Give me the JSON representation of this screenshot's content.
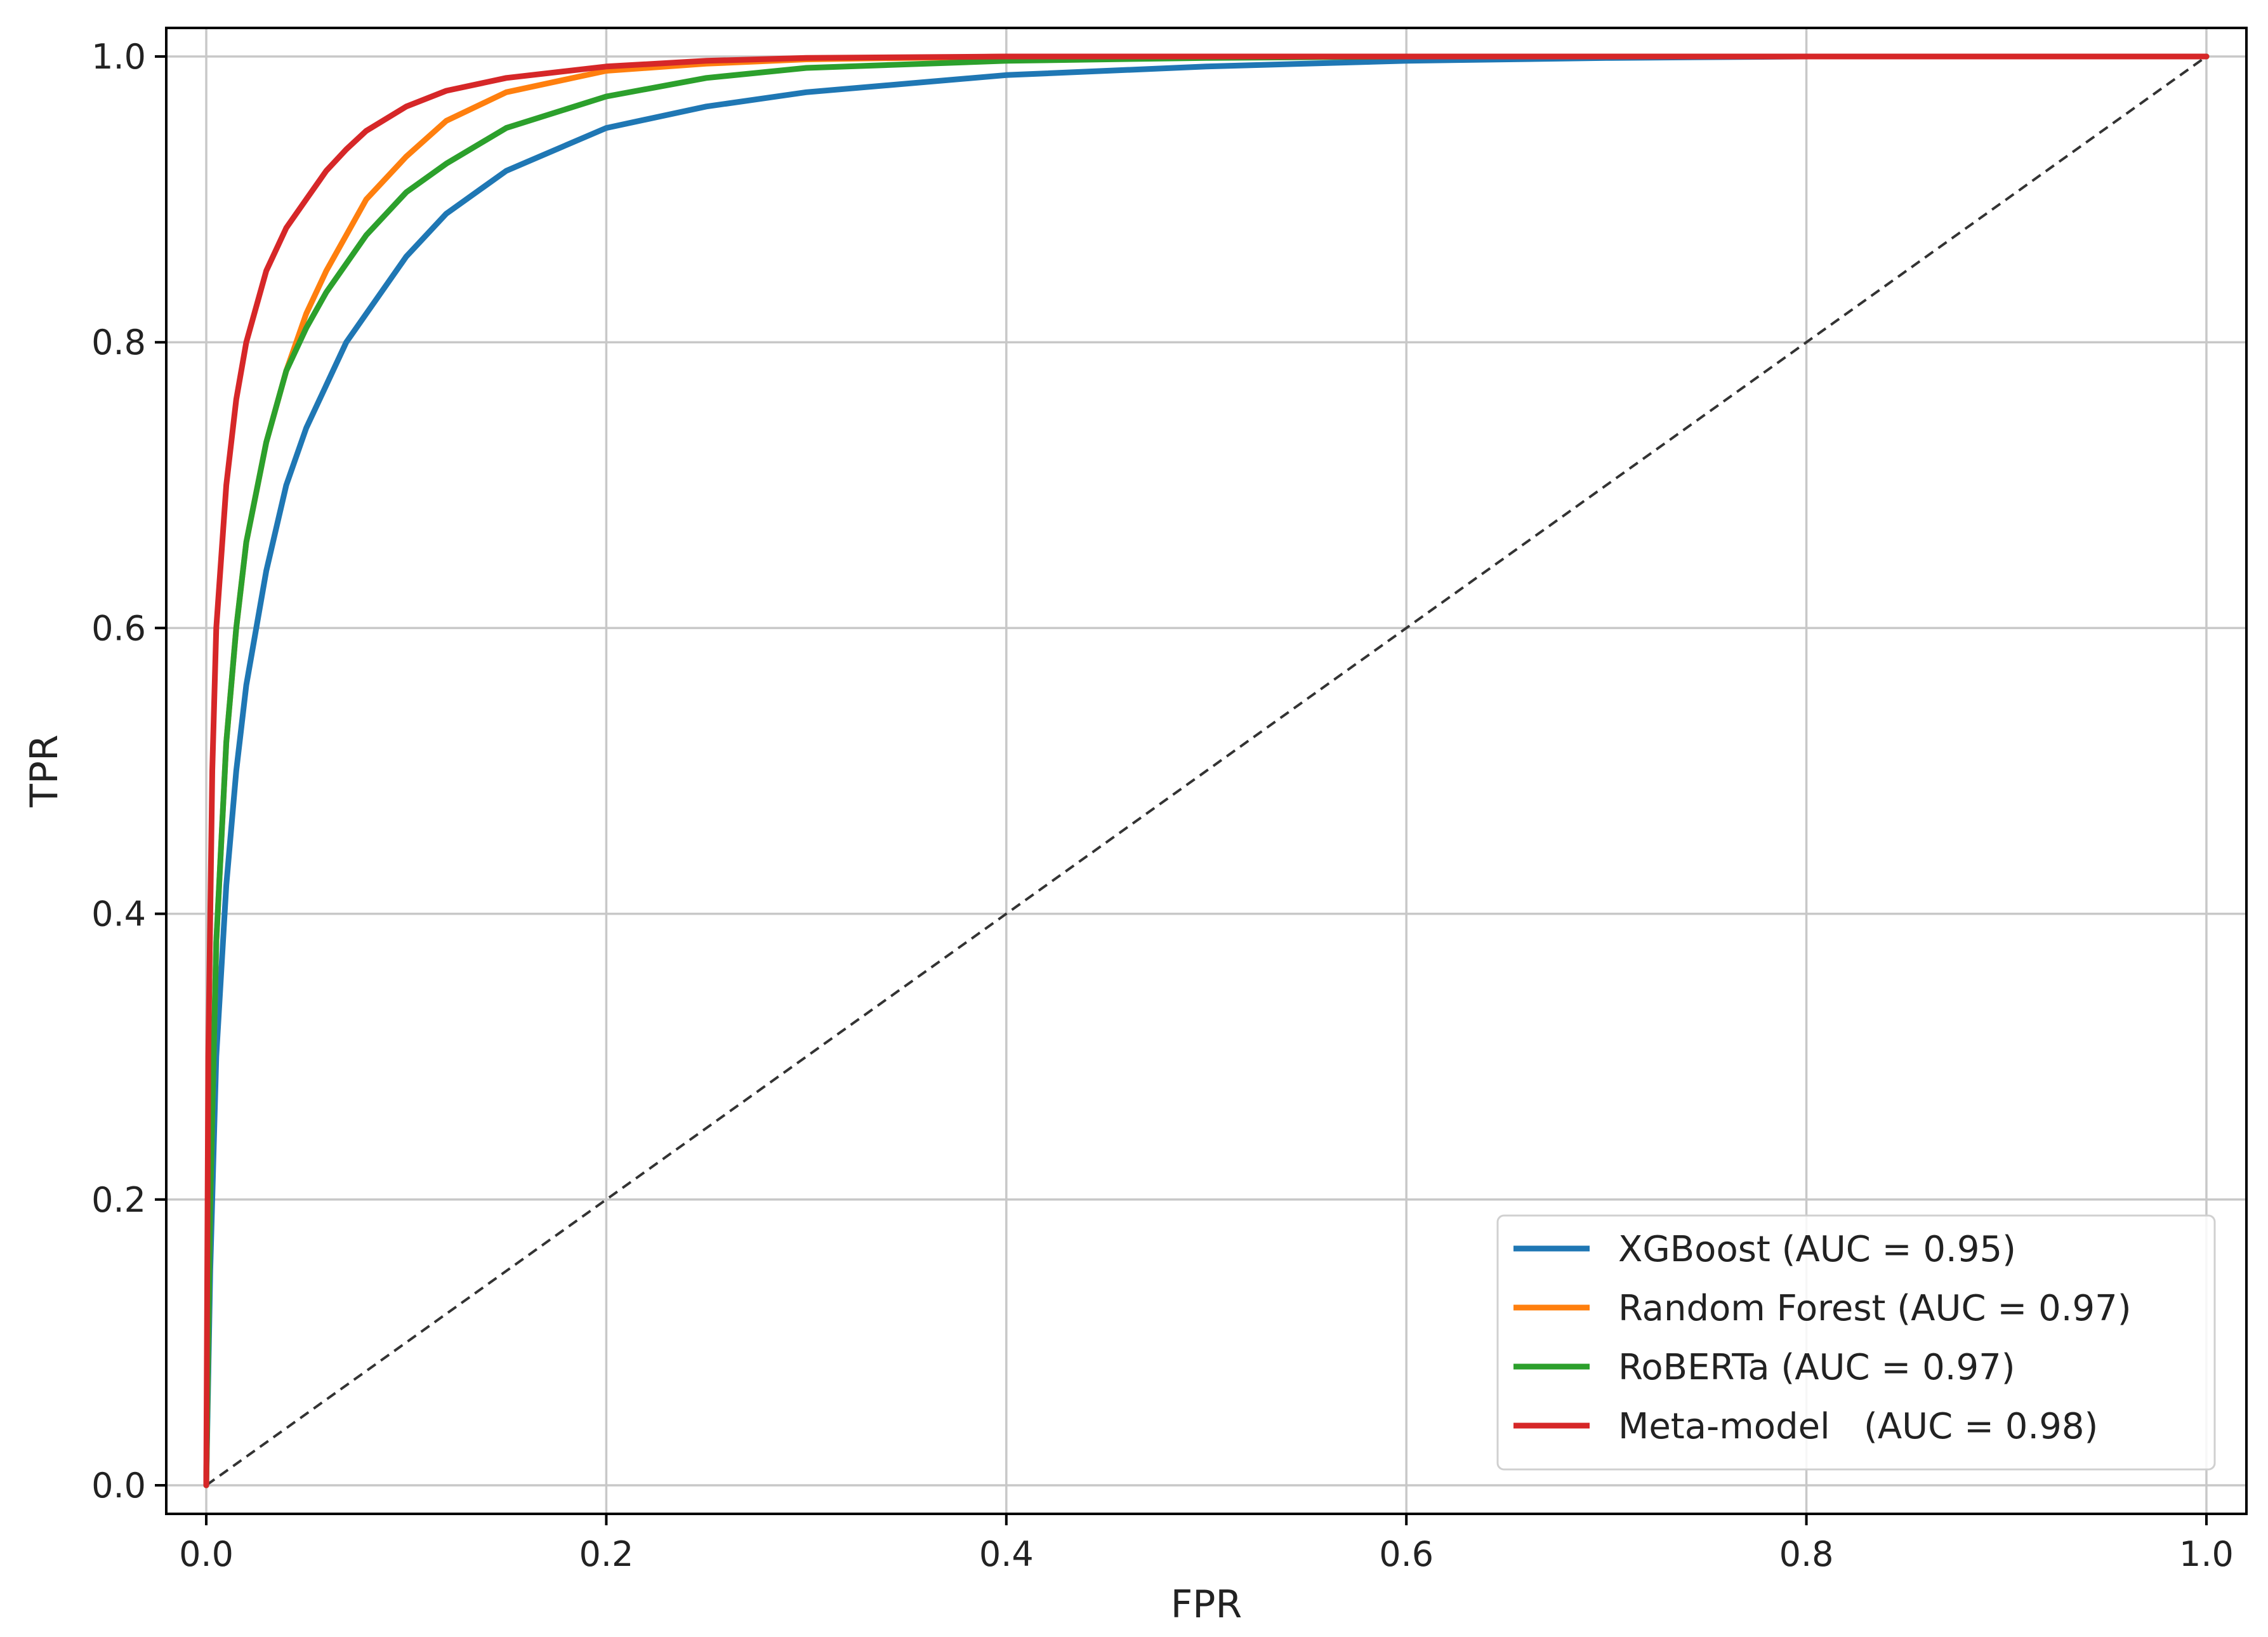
{
  "chart_data": {
    "type": "line",
    "title": "",
    "xlabel": "FPR",
    "ylabel": "TPR",
    "xlim": [
      -0.02,
      1.02
    ],
    "ylim": [
      -0.02,
      1.02
    ],
    "xticks": [
      0.0,
      0.2,
      0.4,
      0.6,
      0.8,
      1.0
    ],
    "yticks": [
      0.0,
      0.2,
      0.4,
      0.6,
      0.8,
      1.0
    ],
    "xtick_labels": [
      "0.0",
      "0.2",
      "0.4",
      "0.6",
      "0.8",
      "1.0"
    ],
    "ytick_labels": [
      "0.0",
      "0.2",
      "0.4",
      "0.6",
      "0.8",
      "1.0"
    ],
    "grid": true,
    "legend_position": "lower-right",
    "series": [
      {
        "name": "XGBoost (AUC = 0.95)",
        "color": "#1f77b4",
        "x": [
          0,
          0.002,
          0.005,
          0.01,
          0.015,
          0.02,
          0.03,
          0.04,
          0.05,
          0.06,
          0.07,
          0.08,
          0.1,
          0.12,
          0.15,
          0.2,
          0.25,
          0.3,
          0.4,
          0.5,
          0.6,
          0.7,
          0.8,
          0.9,
          1.0
        ],
        "y": [
          0,
          0.15,
          0.3,
          0.42,
          0.5,
          0.56,
          0.64,
          0.7,
          0.74,
          0.77,
          0.8,
          0.82,
          0.86,
          0.89,
          0.92,
          0.95,
          0.965,
          0.975,
          0.987,
          0.993,
          0.997,
          0.999,
          1.0,
          1.0,
          1.0
        ]
      },
      {
        "name": "Random Forest (AUC = 0.97)",
        "color": "#ff7f0e",
        "x": [
          0,
          0.002,
          0.005,
          0.01,
          0.015,
          0.02,
          0.03,
          0.04,
          0.05,
          0.06,
          0.07,
          0.08,
          0.1,
          0.12,
          0.15,
          0.2,
          0.25,
          0.3,
          0.4,
          0.5,
          0.6,
          0.8,
          1.0
        ],
        "y": [
          0,
          0.2,
          0.38,
          0.52,
          0.6,
          0.66,
          0.73,
          0.78,
          0.82,
          0.85,
          0.875,
          0.9,
          0.93,
          0.955,
          0.975,
          0.99,
          0.995,
          0.998,
          1.0,
          1.0,
          1.0,
          1.0,
          1.0
        ]
      },
      {
        "name": "RoBERTa (AUC = 0.97)",
        "color": "#2ca02c",
        "x": [
          0,
          0.002,
          0.005,
          0.01,
          0.015,
          0.02,
          0.03,
          0.04,
          0.05,
          0.06,
          0.07,
          0.08,
          0.1,
          0.12,
          0.15,
          0.2,
          0.25,
          0.3,
          0.4,
          0.5,
          0.6,
          0.8,
          1.0
        ],
        "y": [
          0,
          0.2,
          0.38,
          0.52,
          0.6,
          0.66,
          0.73,
          0.78,
          0.81,
          0.835,
          0.855,
          0.875,
          0.905,
          0.925,
          0.95,
          0.972,
          0.985,
          0.992,
          0.997,
          0.999,
          1.0,
          1.0,
          1.0
        ]
      },
      {
        "name": "Meta-model   (AUC = 0.98)",
        "color": "#d62728",
        "x": [
          0,
          0.001,
          0.003,
          0.005,
          0.01,
          0.015,
          0.02,
          0.03,
          0.04,
          0.05,
          0.06,
          0.07,
          0.08,
          0.1,
          0.12,
          0.15,
          0.2,
          0.25,
          0.3,
          0.4,
          0.6,
          0.8,
          1.0
        ],
        "y": [
          0,
          0.3,
          0.5,
          0.6,
          0.7,
          0.76,
          0.8,
          0.85,
          0.88,
          0.9,
          0.92,
          0.935,
          0.948,
          0.965,
          0.976,
          0.985,
          0.993,
          0.997,
          0.999,
          1.0,
          1.0,
          1.0,
          1.0
        ]
      }
    ],
    "reference_line": {
      "x": [
        0,
        1
      ],
      "y": [
        0,
        1
      ],
      "color": "#333333",
      "style": "dashed"
    }
  }
}
